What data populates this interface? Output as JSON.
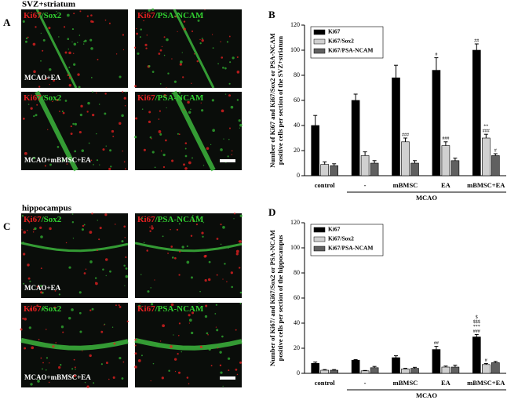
{
  "figure_panels": [
    {
      "letter": "A",
      "title": "SVZ+striatum",
      "stain_labels": [
        [
          "Ki67",
          "/Sox2"
        ],
        [
          "Ki67",
          "/PSA-NCAM"
        ]
      ],
      "condition_labels": [
        "MCAO+EA",
        "MCAO+mBMSC+EA"
      ]
    },
    {
      "letter": "C",
      "title": "hippocampus",
      "stain_labels": [
        [
          "Ki67",
          "/Sox2"
        ],
        [
          "Ki67",
          "/PSA-NCAM"
        ]
      ],
      "condition_labels": [
        "MCAO+EA",
        "MCAO+mBMSC+EA"
      ]
    }
  ],
  "chart_data": [
    {
      "type": "bar",
      "panel_label": "B",
      "ylabel": [
        "Number of Ki67 and Ki67/Sox2 or PSA-NCAM",
        "positive cells per section of the SVZ+striatum"
      ],
      "categories": [
        "control",
        "-",
        "mBMSC",
        "EA",
        "mBMSC+EA"
      ],
      "group_label": "MCAO",
      "ylim": [
        0,
        120
      ],
      "yticks": [
        0,
        20,
        40,
        60,
        80,
        100,
        120
      ],
      "legend": "upper-left",
      "series": [
        {
          "name": "Ki67",
          "color": "#000000",
          "values": [
            40,
            60,
            78,
            84,
            100
          ],
          "errors": [
            8,
            5,
            10,
            10,
            5
          ],
          "annotations": [
            null,
            null,
            null,
            [
              "#"
            ],
            [
              "##"
            ]
          ]
        },
        {
          "name": "Ki67/Sox2",
          "color": "#d0d0d0",
          "values": [
            9,
            16,
            27,
            24,
            30
          ],
          "errors": [
            2,
            3,
            3,
            3,
            3
          ],
          "annotations": [
            null,
            null,
            [
              "###"
            ],
            [
              "###"
            ],
            [
              "**",
              "###"
            ]
          ]
        },
        {
          "name": "Ki67/PSA-NCAM",
          "color": "#606060",
          "values": [
            8,
            10,
            10,
            12,
            16
          ],
          "errors": [
            1.5,
            2,
            2,
            2,
            1.5
          ],
          "annotations": [
            null,
            null,
            null,
            null,
            [
              "#"
            ]
          ]
        }
      ]
    },
    {
      "type": "bar",
      "panel_label": "D",
      "ylabel": [
        "Number of Ki67/ and Ki67/Sox2 or PSA-NCAM",
        "positive cells per section of the hippocampus"
      ],
      "categories": [
        "control",
        "-",
        "mBMSC",
        "EA",
        "mBMSC+EA"
      ],
      "group_label": "MCAO",
      "ylim": [
        0,
        120
      ],
      "yticks": [
        0,
        20,
        40,
        60,
        80,
        100,
        120
      ],
      "legend": "upper-left",
      "series": [
        {
          "name": "Ki67",
          "color": "#000000",
          "values": [
            8,
            10.5,
            12.5,
            19,
            29
          ],
          "errors": [
            1,
            0.5,
            1.5,
            2.5,
            2
          ],
          "annotations": [
            null,
            null,
            null,
            [
              "##"
            ],
            [
              "$",
              "$$$",
              "***",
              "###"
            ]
          ]
        },
        {
          "name": "Ki67/Sox2",
          "color": "#d0d0d0",
          "values": [
            2.5,
            2,
            3.5,
            5,
            7
          ],
          "errors": [
            0.5,
            0.3,
            0.5,
            0.8,
            0.8
          ],
          "annotations": [
            null,
            null,
            null,
            null,
            [
              "#"
            ]
          ]
        },
        {
          "name": "Ki67/PSA-NCAM",
          "color": "#606060",
          "values": [
            2.5,
            4.5,
            4,
            5,
            8.5
          ],
          "errors": [
            0.5,
            1,
            0.8,
            1.5,
            1
          ],
          "annotations": [
            null,
            null,
            null,
            null,
            null
          ]
        }
      ]
    }
  ]
}
